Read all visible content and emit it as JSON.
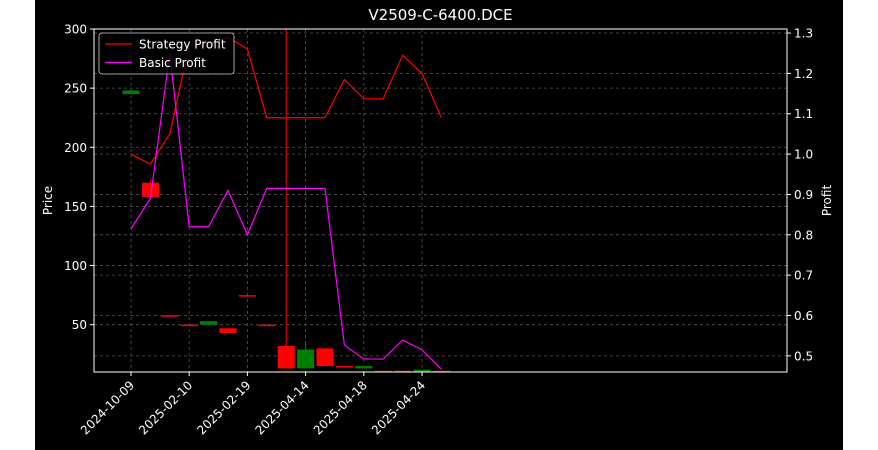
{
  "chart_data": {
    "type": "candlestick-with-lines",
    "title": "V2509-C-6400.DCE",
    "xlabel": "",
    "ylabel_left": "Price",
    "ylabel_right": "Profit",
    "ylim_left": [
      10,
      300
    ],
    "ylim_right": [
      0.46,
      1.31
    ],
    "yticks_left": [
      50,
      100,
      150,
      200,
      250,
      300
    ],
    "yticks_right": [
      0.5,
      0.6,
      0.7,
      0.8,
      0.9,
      1.0,
      1.1,
      1.2,
      1.3
    ],
    "xtick_labels": [
      {
        "index": 0,
        "label": "2024-10-09"
      },
      {
        "index": 3,
        "label": "2025-02-10"
      },
      {
        "index": 6,
        "label": "2025-02-19"
      },
      {
        "index": 9,
        "label": "2025-04-14"
      },
      {
        "index": 12,
        "label": "2025-04-18"
      },
      {
        "index": 15,
        "label": "2025-04-24"
      }
    ],
    "grid": true,
    "legend_position": "top-left",
    "candles": [
      {
        "i": 0,
        "open": 245,
        "close": 248,
        "high": 248,
        "low": 245
      },
      {
        "i": 1,
        "open": 170,
        "close": 158,
        "high": 172,
        "low": 158
      },
      {
        "i": 2,
        "open": 58,
        "close": 57,
        "high": 58,
        "low": 57
      },
      {
        "i": 3,
        "open": 50,
        "close": 49.5,
        "high": 50,
        "low": 49.5
      },
      {
        "i": 4,
        "open": 50,
        "close": 53,
        "high": 53,
        "low": 50
      },
      {
        "i": 5,
        "open": 47,
        "close": 43,
        "high": 47,
        "low": 43
      },
      {
        "i": 6,
        "open": 75,
        "close": 74,
        "high": 75,
        "low": 74
      },
      {
        "i": 7,
        "open": 50,
        "close": 49,
        "high": 50,
        "low": 49
      },
      {
        "i": 8,
        "open": 32,
        "close": 13,
        "high": 300,
        "low": 13
      },
      {
        "i": 9,
        "open": 13,
        "close": 29,
        "high": 35,
        "low": 13
      },
      {
        "i": 10,
        "open": 30,
        "close": 15,
        "high": 30,
        "low": 15
      },
      {
        "i": 11,
        "open": 15,
        "close": 14,
        "high": 15,
        "low": 14
      },
      {
        "i": 12,
        "open": 13,
        "close": 15,
        "high": 15,
        "low": 13
      },
      {
        "i": 13,
        "open": 11,
        "close": 10,
        "high": 11,
        "low": 10
      },
      {
        "i": 14,
        "open": 11,
        "close": 10,
        "high": 11,
        "low": 10
      },
      {
        "i": 15,
        "open": 10,
        "close": 12,
        "high": 12,
        "low": 10
      },
      {
        "i": 16,
        "open": 11,
        "close": 10,
        "high": 11,
        "low": 10
      }
    ],
    "series": [
      {
        "name": "Strategy Profit",
        "color": "#ff0000",
        "axis": "right",
        "values": [
          1.0,
          0.975,
          1.05,
          1.27,
          1.27,
          1.29,
          1.26,
          1.09,
          1.09,
          1.09,
          1.09,
          1.185,
          1.137,
          1.137,
          1.245,
          1.2,
          1.09
        ]
      },
      {
        "name": "Basic Profit",
        "color": "#ff00ff",
        "axis": "right",
        "values": [
          0.815,
          0.89,
          1.25,
          0.82,
          0.82,
          0.91,
          0.8,
          0.915,
          0.915,
          0.915,
          0.915,
          0.527,
          0.492,
          0.492,
          0.539,
          0.515,
          0.467
        ]
      }
    ],
    "colors": {
      "up": "#008000",
      "down": "#ff0000",
      "background": "#000000",
      "grid": "#555555",
      "axis": "#ffffff"
    }
  }
}
